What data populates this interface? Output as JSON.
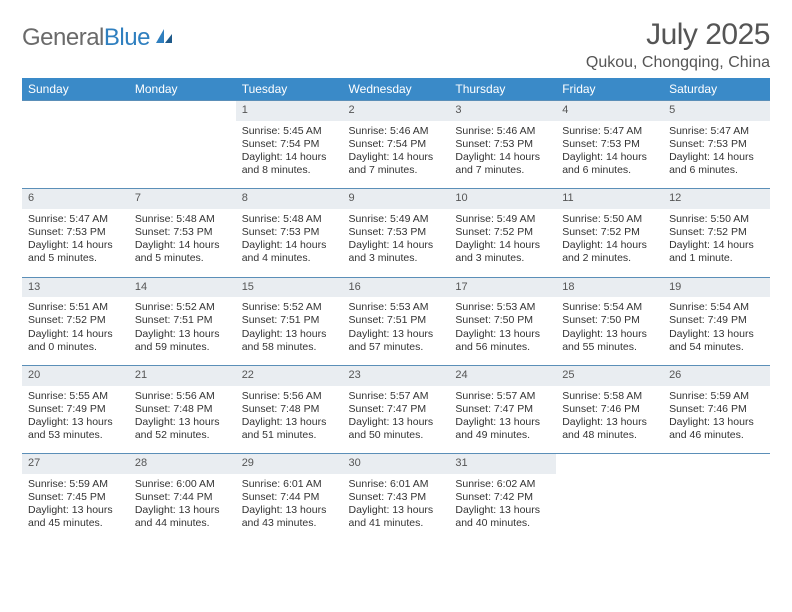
{
  "brand": {
    "part1": "General",
    "part2": "Blue"
  },
  "title": "July 2025",
  "location": "Qukou, Chongqing, China",
  "colors": {
    "header_bg": "#3a8ac8",
    "daynum_bg": "#e9edf1",
    "rule": "#5b8fb8",
    "logo_gray": "#6a6a6a",
    "logo_blue": "#2f7fbf"
  },
  "day_headers": [
    "Sunday",
    "Monday",
    "Tuesday",
    "Wednesday",
    "Thursday",
    "Friday",
    "Saturday"
  ],
  "weeks": [
    [
      null,
      null,
      {
        "n": "1",
        "sr": "5:45 AM",
        "ss": "7:54 PM",
        "dl": "14 hours and 8 minutes."
      },
      {
        "n": "2",
        "sr": "5:46 AM",
        "ss": "7:54 PM",
        "dl": "14 hours and 7 minutes."
      },
      {
        "n": "3",
        "sr": "5:46 AM",
        "ss": "7:53 PM",
        "dl": "14 hours and 7 minutes."
      },
      {
        "n": "4",
        "sr": "5:47 AM",
        "ss": "7:53 PM",
        "dl": "14 hours and 6 minutes."
      },
      {
        "n": "5",
        "sr": "5:47 AM",
        "ss": "7:53 PM",
        "dl": "14 hours and 6 minutes."
      }
    ],
    [
      {
        "n": "6",
        "sr": "5:47 AM",
        "ss": "7:53 PM",
        "dl": "14 hours and 5 minutes."
      },
      {
        "n": "7",
        "sr": "5:48 AM",
        "ss": "7:53 PM",
        "dl": "14 hours and 5 minutes."
      },
      {
        "n": "8",
        "sr": "5:48 AM",
        "ss": "7:53 PM",
        "dl": "14 hours and 4 minutes."
      },
      {
        "n": "9",
        "sr": "5:49 AM",
        "ss": "7:53 PM",
        "dl": "14 hours and 3 minutes."
      },
      {
        "n": "10",
        "sr": "5:49 AM",
        "ss": "7:52 PM",
        "dl": "14 hours and 3 minutes."
      },
      {
        "n": "11",
        "sr": "5:50 AM",
        "ss": "7:52 PM",
        "dl": "14 hours and 2 minutes."
      },
      {
        "n": "12",
        "sr": "5:50 AM",
        "ss": "7:52 PM",
        "dl": "14 hours and 1 minute."
      }
    ],
    [
      {
        "n": "13",
        "sr": "5:51 AM",
        "ss": "7:52 PM",
        "dl": "14 hours and 0 minutes."
      },
      {
        "n": "14",
        "sr": "5:52 AM",
        "ss": "7:51 PM",
        "dl": "13 hours and 59 minutes."
      },
      {
        "n": "15",
        "sr": "5:52 AM",
        "ss": "7:51 PM",
        "dl": "13 hours and 58 minutes."
      },
      {
        "n": "16",
        "sr": "5:53 AM",
        "ss": "7:51 PM",
        "dl": "13 hours and 57 minutes."
      },
      {
        "n": "17",
        "sr": "5:53 AM",
        "ss": "7:50 PM",
        "dl": "13 hours and 56 minutes."
      },
      {
        "n": "18",
        "sr": "5:54 AM",
        "ss": "7:50 PM",
        "dl": "13 hours and 55 minutes."
      },
      {
        "n": "19",
        "sr": "5:54 AM",
        "ss": "7:49 PM",
        "dl": "13 hours and 54 minutes."
      }
    ],
    [
      {
        "n": "20",
        "sr": "5:55 AM",
        "ss": "7:49 PM",
        "dl": "13 hours and 53 minutes."
      },
      {
        "n": "21",
        "sr": "5:56 AM",
        "ss": "7:48 PM",
        "dl": "13 hours and 52 minutes."
      },
      {
        "n": "22",
        "sr": "5:56 AM",
        "ss": "7:48 PM",
        "dl": "13 hours and 51 minutes."
      },
      {
        "n": "23",
        "sr": "5:57 AM",
        "ss": "7:47 PM",
        "dl": "13 hours and 50 minutes."
      },
      {
        "n": "24",
        "sr": "5:57 AM",
        "ss": "7:47 PM",
        "dl": "13 hours and 49 minutes."
      },
      {
        "n": "25",
        "sr": "5:58 AM",
        "ss": "7:46 PM",
        "dl": "13 hours and 48 minutes."
      },
      {
        "n": "26",
        "sr": "5:59 AM",
        "ss": "7:46 PM",
        "dl": "13 hours and 46 minutes."
      }
    ],
    [
      {
        "n": "27",
        "sr": "5:59 AM",
        "ss": "7:45 PM",
        "dl": "13 hours and 45 minutes."
      },
      {
        "n": "28",
        "sr": "6:00 AM",
        "ss": "7:44 PM",
        "dl": "13 hours and 44 minutes."
      },
      {
        "n": "29",
        "sr": "6:01 AM",
        "ss": "7:44 PM",
        "dl": "13 hours and 43 minutes."
      },
      {
        "n": "30",
        "sr": "6:01 AM",
        "ss": "7:43 PM",
        "dl": "13 hours and 41 minutes."
      },
      {
        "n": "31",
        "sr": "6:02 AM",
        "ss": "7:42 PM",
        "dl": "13 hours and 40 minutes."
      },
      null,
      null
    ]
  ],
  "labels": {
    "sunrise": "Sunrise:",
    "sunset": "Sunset:",
    "daylight": "Daylight:"
  }
}
